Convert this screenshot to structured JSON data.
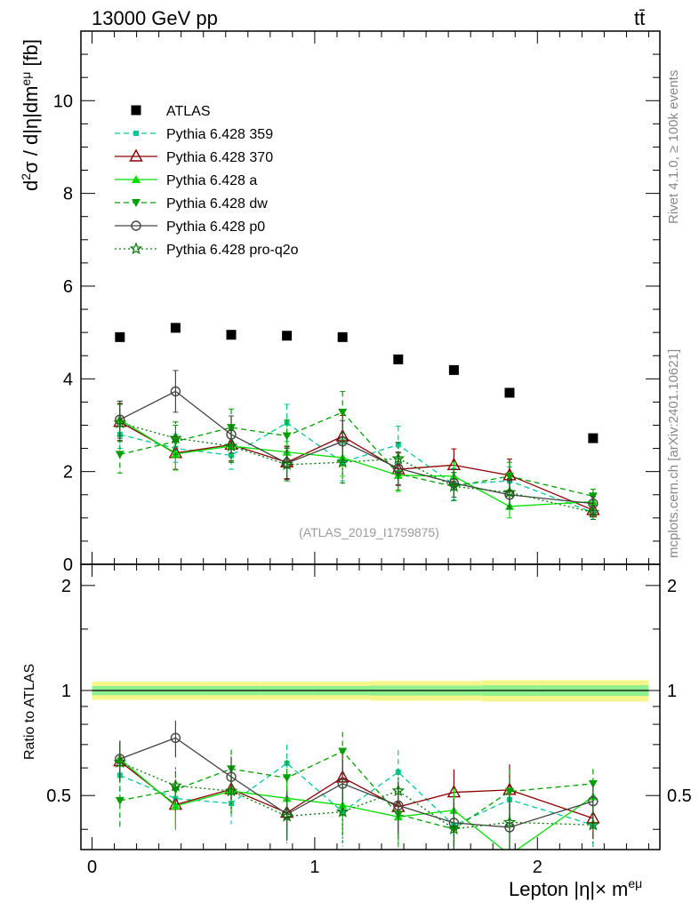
{
  "header": {
    "left": "13000 GeV pp",
    "right": "tt̄"
  },
  "side_labels": {
    "rivet": "Rivet 4.1.0, ≥ 100k events",
    "mcplots": "mcplots.cern.ch [arXiv:2401.10621]"
  },
  "watermark": "(ATLAS_2019_I1759875)",
  "ratio_ylabel": "Ratio to ATLAS",
  "colors": {
    "atlas": "#000000",
    "p359": "#00c896",
    "p370": "#8b0000",
    "pa": "#00e000",
    "pdw": "#00a000",
    "pp0": "#444444",
    "pq2o": "#007a00"
  },
  "chart_data": {
    "type": "scatter",
    "title": "",
    "ylabel": "d²σ / d|η|dm^eμ [fb]",
    "xlabel": "Lepton |η|× m^eμ",
    "xlim": [
      -0.05,
      2.55
    ],
    "ylim": [
      0,
      11.5
    ],
    "ratio_ylim": [
      0.35,
      2.3
    ],
    "x_ticks": [
      "0",
      "1",
      "2"
    ],
    "y_ticks": [
      "0",
      "2",
      "4",
      "6",
      "8",
      "10"
    ],
    "ratio_ticks": [
      "0.5",
      "1",
      "2"
    ],
    "x": [
      0.125,
      0.375,
      0.625,
      0.875,
      1.125,
      1.375,
      1.625,
      1.875,
      2.25
    ],
    "x_edges": [
      0,
      0.25,
      0.5,
      0.75,
      1.0,
      1.25,
      1.5,
      1.75,
      2.0,
      2.5
    ],
    "atlas": {
      "name": "ATLAS",
      "values": [
        4.9,
        5.1,
        4.95,
        4.93,
        4.9,
        4.42,
        4.19,
        3.7,
        2.72
      ],
      "rel_unc": [
        0.06,
        0.06,
        0.06,
        0.06,
        0.06,
        0.065,
        0.065,
        0.07,
        0.07
      ]
    },
    "series": [
      {
        "key": "p359",
        "name": "Pythia 6.428 359",
        "values": [
          2.8,
          2.5,
          2.35,
          3.05,
          2.2,
          2.58,
          1.72,
          1.8,
          1.12
        ],
        "errors": [
          0.3,
          0.3,
          0.3,
          0.4,
          0.4,
          0.4,
          0.35,
          0.3,
          0.15
        ]
      },
      {
        "key": "p370",
        "name": "Pythia 6.428 370",
        "values": [
          3.07,
          2.4,
          2.58,
          2.2,
          2.76,
          2.05,
          2.14,
          1.92,
          1.17
        ],
        "errors": [
          0.4,
          0.35,
          0.35,
          0.35,
          0.45,
          0.35,
          0.35,
          0.35,
          0.15
        ]
      },
      {
        "key": "pa",
        "name": "Pythia 6.428 a",
        "values": [
          3.12,
          2.38,
          2.55,
          2.42,
          2.3,
          1.92,
          1.9,
          1.25,
          1.35
        ],
        "errors": [
          0.4,
          0.35,
          0.35,
          0.35,
          0.4,
          0.35,
          0.3,
          0.25,
          0.15
        ]
      },
      {
        "key": "pdw",
        "name": "Pythia 6.428 dw",
        "values": [
          2.37,
          2.65,
          2.95,
          2.77,
          3.28,
          1.95,
          1.68,
          1.9,
          1.47
        ],
        "errors": [
          0.4,
          0.35,
          0.4,
          0.35,
          0.45,
          0.35,
          0.3,
          0.3,
          0.15
        ]
      },
      {
        "key": "pp0",
        "name": "Pythia 6.428 p0",
        "values": [
          3.12,
          3.73,
          2.8,
          2.18,
          2.65,
          2.07,
          1.75,
          1.5,
          1.31
        ],
        "errors": [
          0.4,
          0.45,
          0.4,
          0.35,
          0.45,
          0.35,
          0.3,
          0.3,
          0.15
        ]
      },
      {
        "key": "pq2o",
        "name": "Pythia 6.428 pro-q2o",
        "values": [
          3.05,
          2.72,
          2.55,
          2.15,
          2.2,
          2.28,
          1.68,
          1.55,
          1.12
        ],
        "errors": [
          0.4,
          0.35,
          0.35,
          0.35,
          0.45,
          0.35,
          0.3,
          0.3,
          0.15
        ]
      }
    ]
  }
}
